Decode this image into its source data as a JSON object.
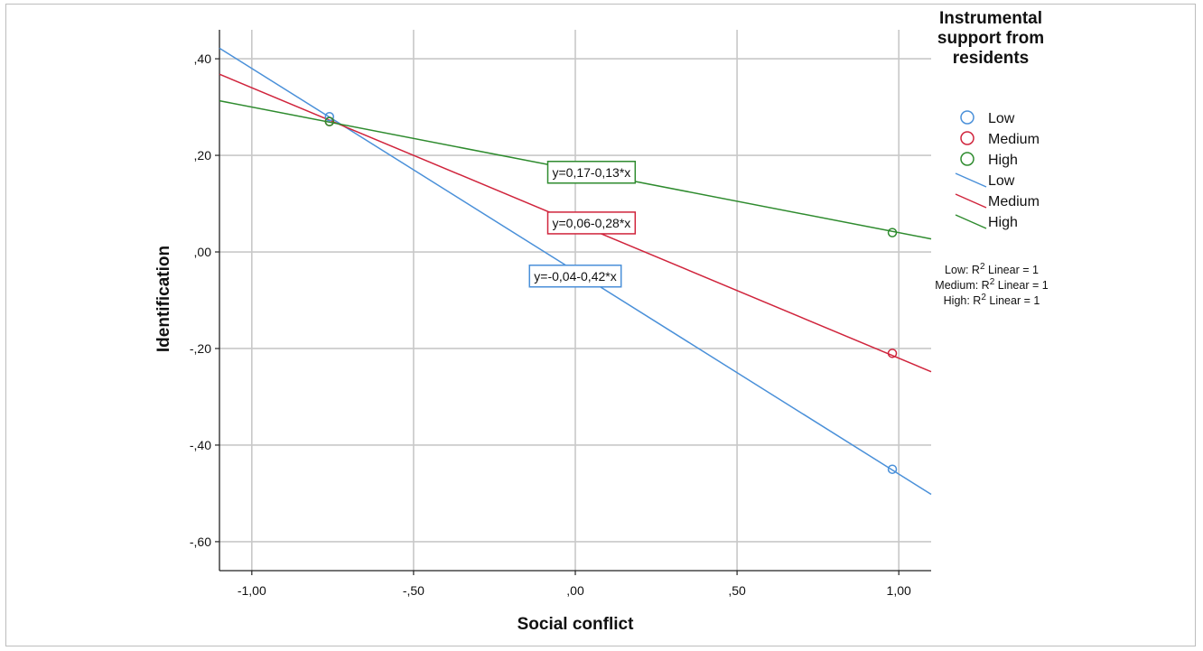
{
  "chart_data": {
    "type": "scatter",
    "xlabel": "Social conflict",
    "ylabel": "Identification",
    "xlim": [
      -1.1,
      1.1
    ],
    "ylim": [
      -0.66,
      0.46
    ],
    "x_ticks": [
      -1.0,
      -0.5,
      0.0,
      0.5,
      1.0
    ],
    "x_tick_labels": [
      "-1,00",
      "-,50",
      ",00",
      ",50",
      "1,00"
    ],
    "y_ticks": [
      0.4,
      0.2,
      0.0,
      -0.2,
      -0.4,
      -0.6
    ],
    "y_tick_labels": [
      ",40",
      ",20",
      ",00",
      "-,20",
      "-,40",
      "-,60"
    ],
    "grid": true,
    "legend_title": "Instrumental support from residents",
    "legend_title_lines": [
      "Instrumental",
      "support from",
      "residents"
    ],
    "legend_placement": "right",
    "series": [
      {
        "name": "Low",
        "color": "#4a90d9",
        "points": [
          {
            "x": -0.76,
            "y": 0.28
          },
          {
            "x": 0.98,
            "y": -0.45
          }
        ],
        "intercept": -0.04,
        "slope": -0.42,
        "equation": "y=-0,04-0,42*x"
      },
      {
        "name": "Medium",
        "color": "#d0243c",
        "points": [
          {
            "x": -0.76,
            "y": 0.27
          },
          {
            "x": 0.98,
            "y": -0.21
          }
        ],
        "intercept": 0.06,
        "slope": -0.28,
        "equation": "y=0,06-0,28*x"
      },
      {
        "name": "High",
        "color": "#2e8b2e",
        "points": [
          {
            "x": -0.76,
            "y": 0.27
          },
          {
            "x": 0.98,
            "y": 0.04
          }
        ],
        "intercept": 0.17,
        "slope": -0.13,
        "equation": "y=0,17-0,13*x"
      }
    ],
    "fit_annotations": [
      {
        "prefix": "Low: R",
        "sup": "2",
        "suffix": " Linear = 1"
      },
      {
        "prefix": "Medium: R",
        "sup": "2",
        "suffix": " Linear = 1"
      },
      {
        "prefix": "High: R",
        "sup": "2",
        "suffix": " Linear = 1"
      }
    ]
  }
}
